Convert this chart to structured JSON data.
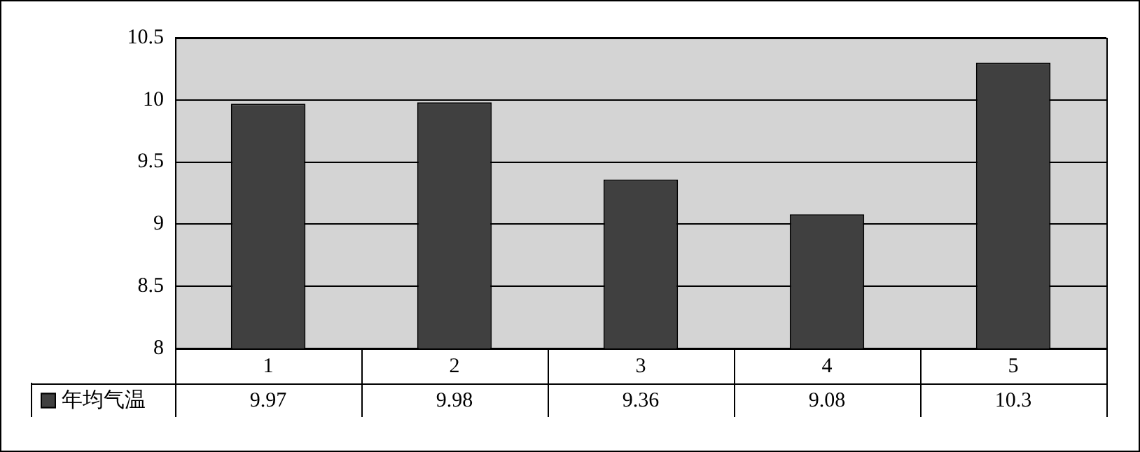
{
  "chart_data": {
    "type": "bar",
    "categories": [
      "1",
      "2",
      "3",
      "4",
      "5"
    ],
    "series": [
      {
        "name": "年均气温",
        "color": "#404040",
        "values": [
          9.97,
          9.98,
          9.36,
          9.08,
          10.3
        ],
        "value_labels": [
          "9.97",
          "9.98",
          "9.36",
          "9.08",
          "10.3"
        ]
      }
    ],
    "ylim": [
      8,
      10.5
    ],
    "yticks": [
      8,
      8.5,
      9,
      9.5,
      10,
      10.5
    ],
    "grid": "y",
    "legend": "bottom left"
  }
}
